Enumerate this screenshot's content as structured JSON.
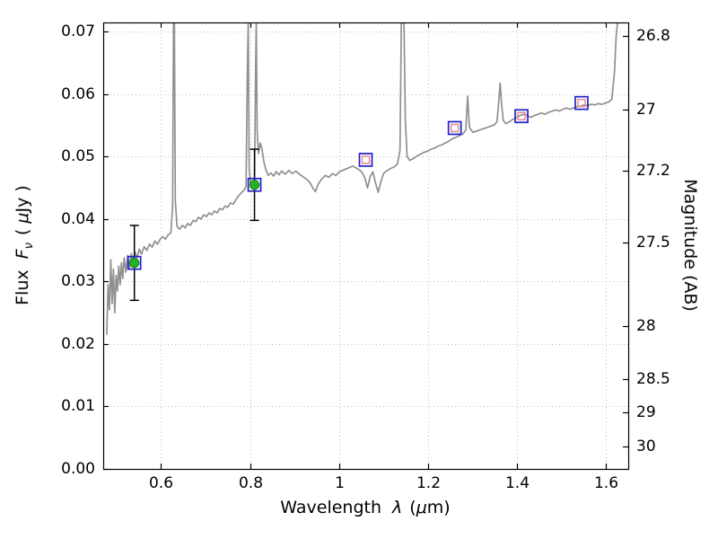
{
  "chart_data": {
    "type": "line",
    "title": "",
    "labels": {
      "xlabel": {
        "word": "Wavelength",
        "lambda": "λ",
        "open": "(",
        "mu": "μ",
        "close": "m)"
      },
      "ylabel": {
        "word": "Flux",
        "f": "F",
        "nu": "ν",
        "open": "( ",
        "mu": "μ",
        "close": "Jy )"
      },
      "y2label": "Magnitude (AB)"
    },
    "xlim": [
      0.47,
      1.65
    ],
    "ylim": [
      0,
      0.0715
    ],
    "grid": true,
    "legend": "none",
    "xticks": {
      "values": [
        0.6,
        0.8,
        1.0,
        1.2,
        1.4,
        1.6
      ],
      "labels": [
        "0.6",
        "0.8",
        "1",
        "1.2",
        "1.4",
        "1.6"
      ]
    },
    "yticks_left": {
      "values": [
        0.0,
        0.01,
        0.02,
        0.03,
        0.04,
        0.05,
        0.06,
        0.07
      ],
      "labels": [
        "0.00",
        "0.01",
        "0.02",
        "0.03",
        "0.04",
        "0.05",
        "0.06",
        "0.07"
      ]
    },
    "yticks_right": {
      "values": [
        0.06934,
        0.05754,
        0.04775,
        0.03631,
        0.02291,
        0.01445,
        0.00912,
        0.00363
      ],
      "labels": [
        "26.8",
        "27",
        "27.2",
        "27.5",
        "28",
        "28.5",
        "29",
        "30"
      ]
    },
    "colors": {
      "spectrum": "#909090",
      "square": "#2020cc",
      "inner": "#e89098",
      "point": "#27b327",
      "point_edge": "#128112",
      "error": "#000000",
      "grid": "#bdbdbd",
      "frame": "#000000",
      "text": "#000000"
    },
    "spectrum": {
      "x": [
        0.478,
        0.481,
        0.484,
        0.487,
        0.49,
        0.493,
        0.496,
        0.499,
        0.502,
        0.505,
        0.508,
        0.511,
        0.514,
        0.517,
        0.521,
        0.525,
        0.529,
        0.533,
        0.537,
        0.541,
        0.546,
        0.551,
        0.556,
        0.562,
        0.568,
        0.574,
        0.58,
        0.586,
        0.592,
        0.598,
        0.604,
        0.61,
        0.616,
        0.622,
        0.626,
        0.628,
        0.63,
        0.632,
        0.636,
        0.642,
        0.648,
        0.654,
        0.66,
        0.666,
        0.672,
        0.678,
        0.684,
        0.69,
        0.696,
        0.702,
        0.708,
        0.714,
        0.72,
        0.726,
        0.732,
        0.738,
        0.744,
        0.75,
        0.756,
        0.762,
        0.768,
        0.774,
        0.78,
        0.786,
        0.791,
        0.794,
        0.796,
        0.798,
        0.801,
        0.804,
        0.807,
        0.81,
        0.8125,
        0.814,
        0.816,
        0.819,
        0.823,
        0.827,
        0.831,
        0.836,
        0.841,
        0.847,
        0.853,
        0.859,
        0.865,
        0.871,
        0.879,
        0.887,
        0.895,
        0.903,
        0.911,
        0.919,
        0.927,
        0.935,
        0.941,
        0.947,
        0.953,
        0.961,
        0.969,
        0.977,
        0.985,
        0.993,
        1.001,
        1.011,
        1.021,
        1.031,
        1.041,
        1.051,
        1.058,
        1.064,
        1.07,
        1.076,
        1.082,
        1.088,
        1.094,
        1.1,
        1.108,
        1.116,
        1.124,
        1.131,
        1.137,
        1.14,
        1.146,
        1.149,
        1.153,
        1.159,
        1.167,
        1.175,
        1.183,
        1.191,
        1.199,
        1.207,
        1.215,
        1.223,
        1.231,
        1.239,
        1.247,
        1.255,
        1.263,
        1.271,
        1.279,
        1.285,
        1.289,
        1.293,
        1.301,
        1.309,
        1.317,
        1.325,
        1.333,
        1.341,
        1.349,
        1.355,
        1.359,
        1.362,
        1.365,
        1.369,
        1.375,
        1.383,
        1.391,
        1.399,
        1.407,
        1.415,
        1.423,
        1.431,
        1.439,
        1.447,
        1.455,
        1.463,
        1.471,
        1.479,
        1.487,
        1.495,
        1.503,
        1.511,
        1.519,
        1.527,
        1.535,
        1.543,
        1.551,
        1.559,
        1.567,
        1.575,
        1.583,
        1.591,
        1.599,
        1.607,
        1.613,
        1.619,
        1.623,
        1.626
      ],
      "y": [
        0.0215,
        0.0295,
        0.0255,
        0.0335,
        0.0265,
        0.032,
        0.025,
        0.031,
        0.0285,
        0.0325,
        0.0295,
        0.033,
        0.0305,
        0.0338,
        0.0315,
        0.0342,
        0.0322,
        0.0345,
        0.033,
        0.0348,
        0.0338,
        0.0352,
        0.0344,
        0.0356,
        0.035,
        0.036,
        0.0355,
        0.0365,
        0.036,
        0.0368,
        0.0372,
        0.0368,
        0.0375,
        0.0378,
        0.042,
        0.0715,
        0.0715,
        0.043,
        0.0388,
        0.0384,
        0.039,
        0.0386,
        0.0393,
        0.039,
        0.0398,
        0.0396,
        0.0403,
        0.04,
        0.0407,
        0.0404,
        0.041,
        0.0407,
        0.0413,
        0.041,
        0.0417,
        0.0415,
        0.0421,
        0.0419,
        0.0426,
        0.0424,
        0.0431,
        0.0437,
        0.0442,
        0.0446,
        0.0452,
        0.064,
        0.0715,
        0.048,
        0.0458,
        0.0452,
        0.0461,
        0.0455,
        0.064,
        0.0715,
        0.054,
        0.0505,
        0.0522,
        0.0512,
        0.0492,
        0.0478,
        0.047,
        0.0474,
        0.0469,
        0.0476,
        0.0471,
        0.0477,
        0.0472,
        0.0478,
        0.0473,
        0.0477,
        0.0472,
        0.0468,
        0.0464,
        0.0458,
        0.045,
        0.0444,
        0.0456,
        0.0464,
        0.047,
        0.0467,
        0.0473,
        0.047,
        0.0476,
        0.0479,
        0.0482,
        0.0485,
        0.0481,
        0.0476,
        0.0466,
        0.045,
        0.0468,
        0.0476,
        0.0458,
        0.0443,
        0.046,
        0.0473,
        0.0478,
        0.0481,
        0.0484,
        0.0488,
        0.051,
        0.0715,
        0.0715,
        0.056,
        0.05,
        0.0494,
        0.0497,
        0.0501,
        0.0504,
        0.0507,
        0.0509,
        0.0512,
        0.0514,
        0.0517,
        0.0519,
        0.0522,
        0.0525,
        0.0529,
        0.0531,
        0.0534,
        0.0537,
        0.0543,
        0.0597,
        0.0547,
        0.0539,
        0.0541,
        0.0543,
        0.0545,
        0.0547,
        0.0549,
        0.0551,
        0.0556,
        0.0588,
        0.0618,
        0.0588,
        0.0558,
        0.0553,
        0.0556,
        0.056,
        0.0563,
        0.0566,
        0.0568,
        0.0566,
        0.0563,
        0.0566,
        0.0568,
        0.057,
        0.0568,
        0.0571,
        0.0573,
        0.0575,
        0.0573,
        0.0576,
        0.0578,
        0.0576,
        0.0578,
        0.058,
        0.0581,
        0.0583,
        0.0582,
        0.0584,
        0.0583,
        0.0585,
        0.0584,
        0.0586,
        0.0588,
        0.0592,
        0.0635,
        0.0695,
        0.0715
      ]
    },
    "photometry": {
      "observed_points": [
        {
          "x": 0.54,
          "y": 0.033,
          "yerr": 0.006
        },
        {
          "x": 0.81,
          "y": 0.0455,
          "yerr": 0.0057
        }
      ],
      "model_squares": [
        {
          "x": 0.54,
          "y": 0.033
        },
        {
          "x": 0.81,
          "y": 0.0455
        },
        {
          "x": 1.06,
          "y": 0.0495
        },
        {
          "x": 1.26,
          "y": 0.0546
        },
        {
          "x": 1.41,
          "y": 0.0565
        },
        {
          "x": 1.545,
          "y": 0.0586
        }
      ],
      "inner_markers": [
        {
          "x": 1.06,
          "y": 0.0495
        },
        {
          "x": 1.26,
          "y": 0.0546
        },
        {
          "x": 1.41,
          "y": 0.0565
        },
        {
          "x": 1.545,
          "y": 0.0586
        }
      ]
    }
  }
}
